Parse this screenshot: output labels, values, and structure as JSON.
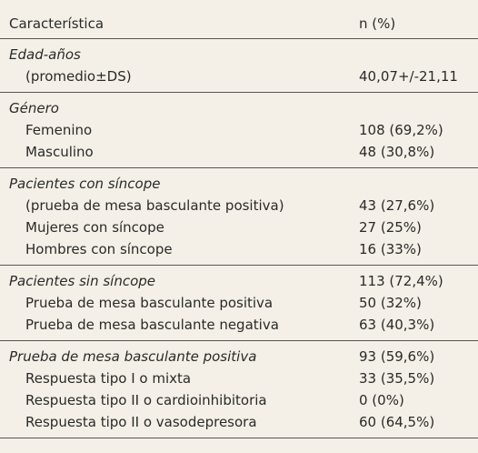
{
  "header": {
    "label": "Característica",
    "value": "n (%)"
  },
  "groups": [
    {
      "title": "Edad-años",
      "rows": [
        {
          "label": "(promedio±DS)",
          "value": "40,07+/-21,11"
        }
      ]
    },
    {
      "title": "Género",
      "rows": [
        {
          "label": "Femenino",
          "value": "108 (69,2%)"
        },
        {
          "label": "Masculino",
          "value": "48 (30,8%)"
        }
      ]
    },
    {
      "title": "Pacientes con síncope",
      "rows": [
        {
          "label": "(prueba de mesa basculante positiva)",
          "value": "43 (27,6%)"
        },
        {
          "label": "Mujeres con síncope",
          "value": "27 (25%)"
        },
        {
          "label": "Hombres con síncope",
          "value": "16 (33%)"
        }
      ]
    },
    {
      "title": "Pacientes sin síncope",
      "value": "113 (72,4%)",
      "rows": [
        {
          "label": "Prueba de mesa basculante positiva",
          "value": "50 (32%)"
        },
        {
          "label": "Prueba de mesa basculante negativa",
          "value": "63 (40,3%)"
        }
      ]
    },
    {
      "title": "Prueba de mesa basculante positiva",
      "value": "93 (59,6%)",
      "rows": [
        {
          "label": "Respuesta tipo I o mixta",
          "value": "33 (35,5%)"
        },
        {
          "label": "Respuesta tipo II o cardioinhibitoria",
          "value": "0 (0%)"
        },
        {
          "label": "Respuesta tipo II o vasodepresora",
          "value": "60 (64,5%)"
        }
      ]
    }
  ]
}
